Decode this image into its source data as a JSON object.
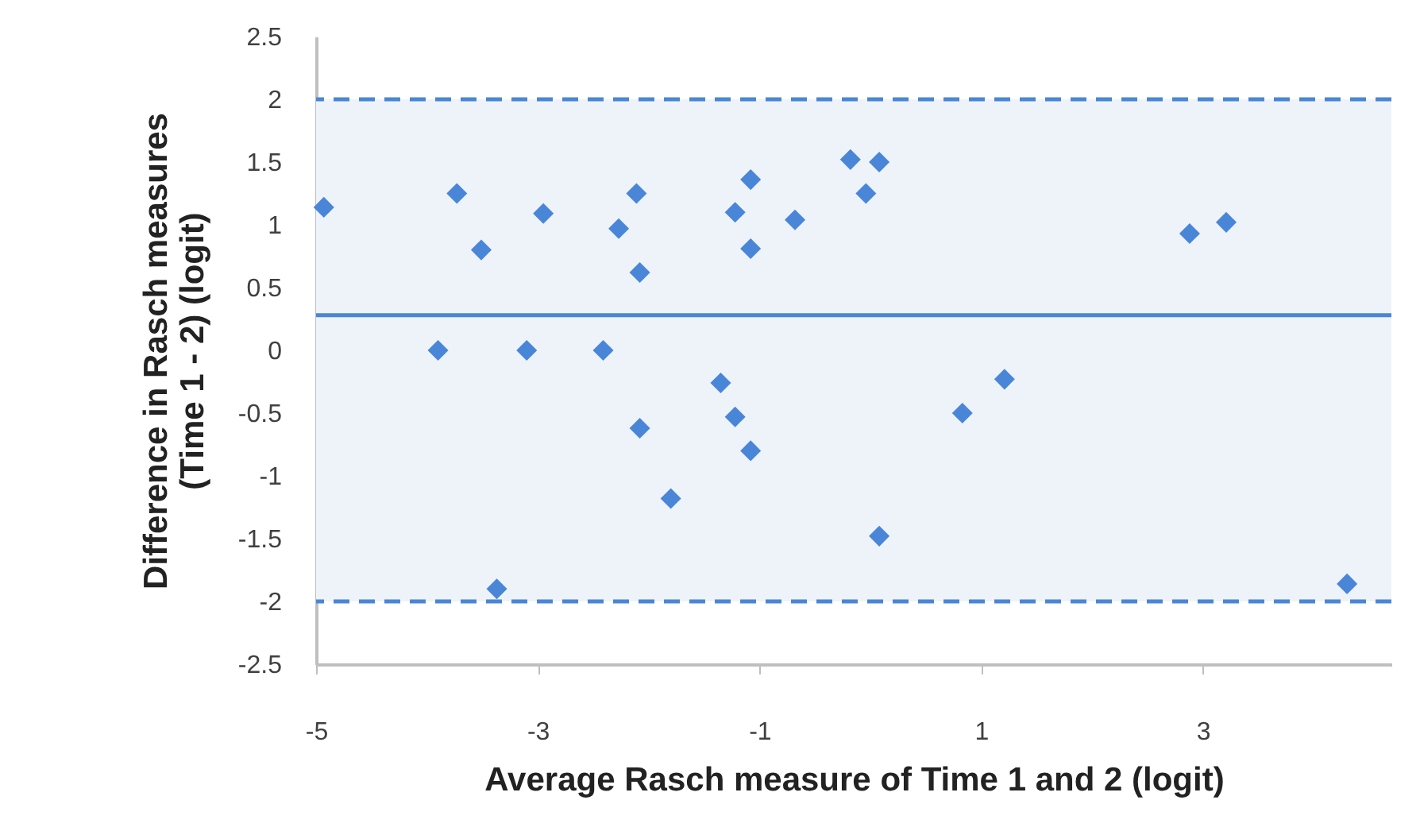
{
  "chart_data": {
    "type": "scatter",
    "xlabel": "Average Rasch measure of Time 1 and 2 (logit)",
    "ylabel": "Difference in Rasch measures\n(Time 1 - 2) (logit)",
    "xlim": [
      -5,
      4.7
    ],
    "xticks": [
      -5,
      -3,
      -1,
      1,
      3
    ],
    "ylim": [
      -2.5,
      2.5
    ],
    "yticks": [
      -2.5,
      -2,
      -1.5,
      -1,
      -0.5,
      0,
      0.5,
      1,
      1.5,
      2,
      2.5
    ],
    "grid": false,
    "marker": "diamond",
    "bands": [
      {
        "axis": "y",
        "from": -2,
        "to": 2,
        "color": "#eef3fa"
      }
    ],
    "ref_lines": [
      {
        "axis": "y",
        "value": 2,
        "color": "#4a86d8",
        "line_style": "dashed"
      },
      {
        "axis": "y",
        "value": -2,
        "color": "#4a86d8",
        "line_style": "dashed"
      },
      {
        "axis": "y",
        "value": 0.28,
        "color": "#4a86d8",
        "line_style": "solid"
      }
    ],
    "series": [
      {
        "color": "#4a86d8",
        "x": [
          -4.93,
          -3.73,
          -3.51,
          -3.9,
          -3.37,
          -2.95,
          -3.1,
          -2.27,
          -2.11,
          -2.08,
          -2.41,
          -2.08,
          -1.8,
          -1.35,
          -1.22,
          -1.08,
          -1.22,
          -1.08,
          -1.08,
          -0.68,
          -0.18,
          0.08,
          -0.04,
          0.08,
          0.83,
          1.21,
          2.88,
          3.21,
          4.3
        ],
        "values": [
          1.14,
          1.25,
          0.8,
          0,
          -1.9,
          1.09,
          0,
          0.97,
          1.25,
          0.62,
          0,
          -0.62,
          -1.18,
          -0.26,
          -0.53,
          -0.8,
          1.1,
          1.36,
          0.81,
          1.04,
          1.52,
          1.5,
          1.25,
          -1.48,
          -0.5,
          -0.23,
          0.93,
          1.02,
          -1.86
        ]
      }
    ]
  }
}
